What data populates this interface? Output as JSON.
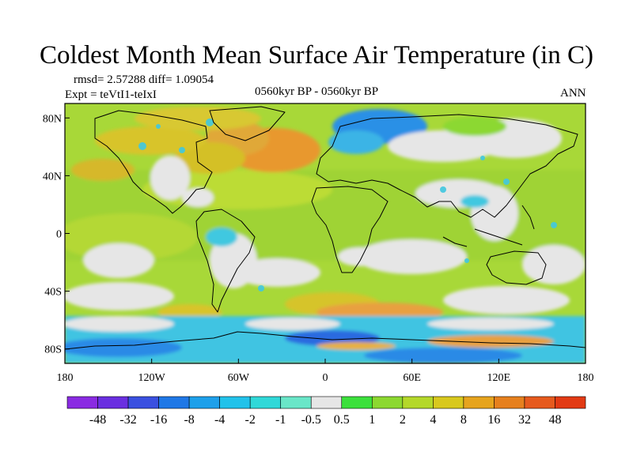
{
  "title": "Coldest Month Mean Surface Air Temperature (in C)",
  "stats": "rmsd= 2.57288  diff= 1.09054",
  "expt": "Expt = teVtI1-teIxI",
  "period": "0560kyr BP - 0560kyr BP",
  "season": "ANN",
  "lat_ticks": [
    {
      "label": "80N",
      "lat": 80
    },
    {
      "label": "40N",
      "lat": 40
    },
    {
      "label": "0",
      "lat": 0
    },
    {
      "label": "40S",
      "lat": -40
    },
    {
      "label": "80S",
      "lat": -80
    }
  ],
  "lon_ticks": [
    {
      "label": "180",
      "lon": -180
    },
    {
      "label": "120W",
      "lon": -120
    },
    {
      "label": "60W",
      "lon": -60
    },
    {
      "label": "0",
      "lon": 0
    },
    {
      "label": "60E",
      "lon": 60
    },
    {
      "label": "120E",
      "lon": 120
    },
    {
      "label": "180",
      "lon": 180
    }
  ],
  "colorbar": {
    "colors": [
      "#8a2be2",
      "#6a2fe0",
      "#3a50e0",
      "#1f78e6",
      "#1ea0ea",
      "#22c2ea",
      "#30d8d8",
      "#6ae6c8",
      "#e6e6e6",
      "#3ce03c",
      "#8cd830",
      "#b4d82a",
      "#d8c81e",
      "#e6a41e",
      "#e6801e",
      "#e65a1e",
      "#e23a14"
    ],
    "labels": [
      "-48",
      "-32",
      "-16",
      "-8",
      "-4",
      "-2",
      "-1",
      "-0.5",
      "0.5",
      "1",
      "2",
      "4",
      "8",
      "16",
      "32",
      "48"
    ]
  },
  "colors": {
    "ocean_base": "#a6d834",
    "land_base": "#8ed430",
    "warm_orange": "#e8a040",
    "warm_yellow": "#d8cc30",
    "near_zero_gray": "#e6e6e6",
    "cool_cyan": "#40c8e0",
    "cool_blue": "#2a8ae6",
    "coast": "#000000"
  }
}
